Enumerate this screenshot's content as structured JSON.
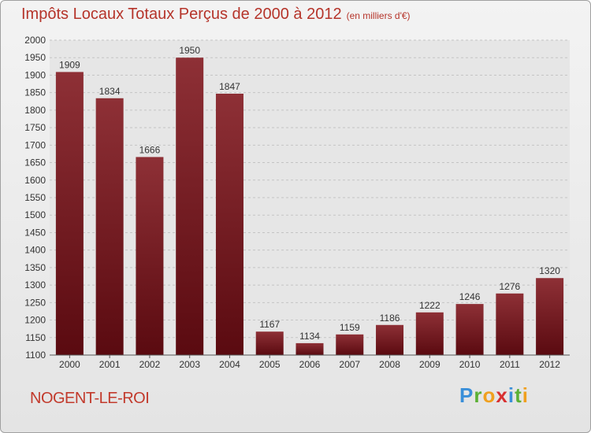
{
  "chart_data": {
    "type": "bar",
    "title": "Impôts Locaux Totaux Perçus de 2000 à 2012",
    "unit_label": "(en milliers d'€)",
    "categories": [
      "2000",
      "2001",
      "2002",
      "2003",
      "2004",
      "2005",
      "2006",
      "2007",
      "2008",
      "2009",
      "2010",
      "2011",
      "2012"
    ],
    "values": [
      1909,
      1834,
      1666,
      1950,
      1847,
      1167,
      1134,
      1159,
      1186,
      1222,
      1246,
      1276,
      1320
    ],
    "ylim": [
      1100,
      2000
    ],
    "ytick_step": 50,
    "grid": true,
    "bar_color": "#7a1f24",
    "xlabel": "",
    "ylabel": ""
  },
  "location": "NOGENT-LE-ROI",
  "logo": {
    "letters": [
      "P",
      "r",
      "o",
      "x",
      "i",
      "t",
      "i"
    ],
    "colors": [
      "#3a8fd9",
      "#5bb035",
      "#f0a01e",
      "#d83030",
      "#3a8fd9",
      "#5bb035",
      "#f0a01e"
    ]
  }
}
